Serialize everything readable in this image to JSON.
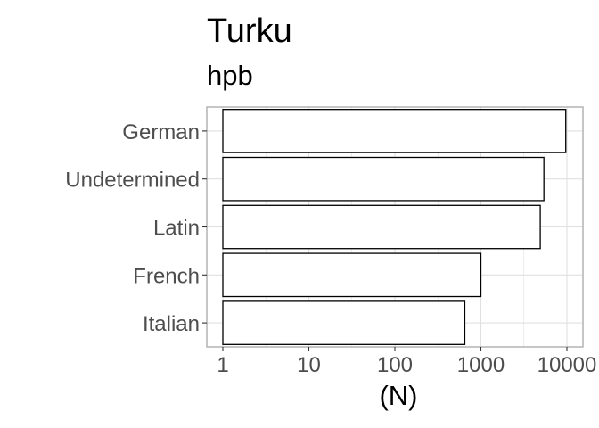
{
  "chart_data": {
    "type": "bar",
    "orientation": "horizontal",
    "title": "Turku",
    "subtitle": "hpb",
    "xlabel": "(N)",
    "ylabel": "",
    "x_scale": "log10",
    "xlim": [
      1,
      10000
    ],
    "x_ticks": [
      1,
      10,
      100,
      1000,
      10000
    ],
    "x_tick_labels": [
      "1",
      "10",
      "100",
      "1000",
      "10000"
    ],
    "categories": [
      "German",
      "Undetermined",
      "Latin",
      "French",
      "Italian"
    ],
    "values": [
      9700,
      5400,
      4900,
      1000,
      650
    ],
    "grid": true,
    "legend": "none",
    "bar_fill": "#ffffff",
    "bar_stroke": "#000000",
    "grid_color": "#e0e0e0",
    "panel_border_color": "#b3b3b3",
    "tick_label_color": "#4d4d4d"
  }
}
